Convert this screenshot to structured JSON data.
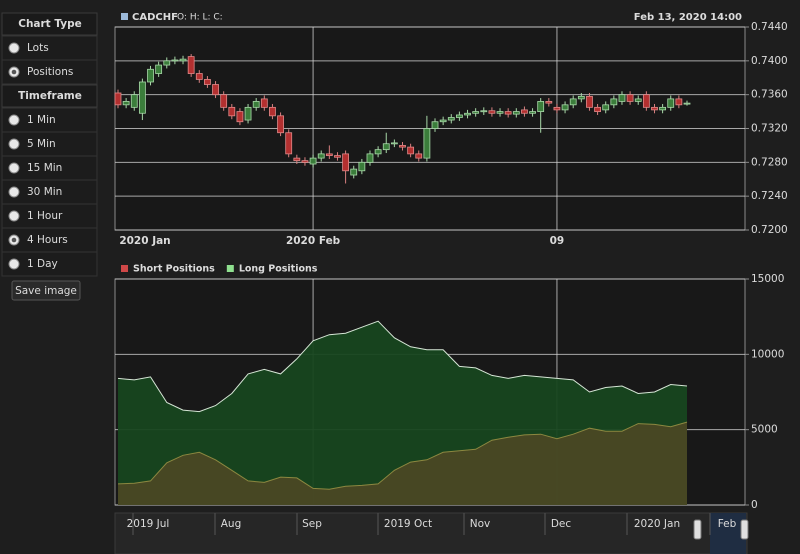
{
  "sidebar": {
    "chart_type": {
      "title": "Chart Type",
      "options": [
        "Lots",
        "Positions"
      ],
      "selected": "Positions"
    },
    "timeframe": {
      "title": "Timeframe",
      "options": [
        "1 Min",
        "5 Min",
        "15 Min",
        "30 Min",
        "1 Hour",
        "4 Hours",
        "1 Day"
      ],
      "selected": "4 Hours"
    },
    "save_button": "Save image"
  },
  "chart_data": [
    {
      "type": "candlestick",
      "title": "CADCHF",
      "ohlc_label": "O: H: L: C:",
      "timestamp": "Feb 13, 2020 14:00",
      "categories": [
        "2020 Jan",
        null,
        null,
        null,
        null,
        null,
        null,
        null,
        null,
        null,
        null,
        null,
        null,
        null,
        null,
        null,
        null,
        null,
        null,
        null,
        null,
        null,
        null,
        null,
        "2020 Feb",
        null,
        null,
        null,
        null,
        null,
        null,
        null,
        null,
        null,
        null,
        null,
        null,
        null,
        null,
        null,
        null,
        null,
        null,
        null,
        null,
        null,
        null,
        null,
        null,
        null,
        null,
        null,
        null,
        null,
        "09",
        null,
        null,
        null,
        null,
        null,
        null,
        null,
        null,
        null,
        null,
        null,
        null,
        null,
        null,
        null,
        null
      ],
      "open": [
        0.7362,
        0.7348,
        0.7345,
        0.7338,
        0.7375,
        0.7385,
        0.7395,
        0.74,
        0.74,
        0.7405,
        0.7385,
        0.7378,
        0.7372,
        0.736,
        0.7345,
        0.734,
        0.733,
        0.7345,
        0.7355,
        0.7345,
        0.7335,
        0.7315,
        0.7285,
        0.7282,
        0.7278,
        0.7285,
        0.729,
        0.7288,
        0.729,
        0.7265,
        0.727,
        0.728,
        0.729,
        0.7295,
        0.7302,
        0.73,
        0.7298,
        0.729,
        0.7285,
        0.732,
        0.7328,
        0.733,
        0.7333,
        0.7336,
        0.7338,
        0.734,
        0.7341,
        0.7338,
        0.734,
        0.7337,
        0.7342,
        0.7338,
        0.734,
        0.7352,
        0.7345,
        0.7342,
        0.7348,
        0.7355,
        0.7358,
        0.7345,
        0.7342,
        0.7348,
        0.7352,
        0.736,
        0.7352,
        0.736,
        0.7345,
        0.7342,
        0.7345,
        0.7355,
        0.735
      ],
      "high": [
        0.7366,
        0.7356,
        0.7364,
        0.7379,
        0.7394,
        0.7399,
        0.7404,
        0.7405,
        0.7406,
        0.7408,
        0.7389,
        0.7382,
        0.7376,
        0.7364,
        0.7349,
        0.7344,
        0.7349,
        0.7356,
        0.7359,
        0.7349,
        0.7339,
        0.7319,
        0.7289,
        0.7286,
        0.7289,
        0.7294,
        0.73,
        0.7292,
        0.7294,
        0.7276,
        0.7284,
        0.7294,
        0.7299,
        0.7315,
        0.7307,
        0.7304,
        0.7302,
        0.7294,
        0.7335,
        0.7332,
        0.7334,
        0.7337,
        0.734,
        0.7342,
        0.7344,
        0.7345,
        0.7345,
        0.7344,
        0.7344,
        0.7344,
        0.7346,
        0.7344,
        0.7356,
        0.7356,
        0.7349,
        0.7352,
        0.7359,
        0.7362,
        0.7362,
        0.7349,
        0.7352,
        0.7359,
        0.7364,
        0.7364,
        0.7359,
        0.7364,
        0.7349,
        0.7349,
        0.7359,
        0.7359,
        0.7353
      ],
      "low": [
        0.7344,
        0.7344,
        0.7341,
        0.733,
        0.7371,
        0.7381,
        0.7391,
        0.7396,
        0.7396,
        0.7381,
        0.7374,
        0.7368,
        0.7356,
        0.7341,
        0.7331,
        0.7324,
        0.7326,
        0.7341,
        0.7341,
        0.7331,
        0.7311,
        0.7286,
        0.7278,
        0.7276,
        0.7274,
        0.7281,
        0.7284,
        0.7282,
        0.7255,
        0.7261,
        0.7266,
        0.7276,
        0.7286,
        0.7291,
        0.7298,
        0.7294,
        0.7286,
        0.7281,
        0.7281,
        0.7316,
        0.7324,
        0.7326,
        0.7329,
        0.7332,
        0.7334,
        0.7336,
        0.7334,
        0.7334,
        0.7333,
        0.7333,
        0.7334,
        0.7334,
        0.7315,
        0.7346,
        0.7338,
        0.7338,
        0.7344,
        0.7351,
        0.7341,
        0.7336,
        0.7338,
        0.7344,
        0.7348,
        0.7348,
        0.7348,
        0.7341,
        0.7338,
        0.7338,
        0.7341,
        0.7344,
        0.7347
      ],
      "close": [
        0.7348,
        0.7352,
        0.736,
        0.7375,
        0.739,
        0.7395,
        0.74,
        0.7401,
        0.7402,
        0.7385,
        0.7378,
        0.7372,
        0.736,
        0.7345,
        0.7335,
        0.7328,
        0.7345,
        0.7352,
        0.7345,
        0.7335,
        0.7315,
        0.729,
        0.7282,
        0.728,
        0.7285,
        0.729,
        0.7288,
        0.7286,
        0.727,
        0.7272,
        0.728,
        0.729,
        0.7295,
        0.7302,
        0.7303,
        0.7298,
        0.729,
        0.7285,
        0.732,
        0.7328,
        0.733,
        0.7333,
        0.7336,
        0.7338,
        0.734,
        0.7341,
        0.7338,
        0.734,
        0.7337,
        0.734,
        0.7338,
        0.734,
        0.7352,
        0.735,
        0.7342,
        0.7348,
        0.7355,
        0.7358,
        0.7345,
        0.734,
        0.7348,
        0.7355,
        0.736,
        0.7352,
        0.7355,
        0.7345,
        0.7342,
        0.7345,
        0.7355,
        0.7348,
        0.735
      ],
      "ylim": [
        0.72,
        0.744
      ],
      "yticks": [
        {
          "value": 0.72,
          "label": "0.7200"
        },
        {
          "value": 0.724,
          "label": "0.7240"
        },
        {
          "value": 0.728,
          "label": "0.7280"
        },
        {
          "value": 0.732,
          "label": "0.7320"
        },
        {
          "value": 0.736,
          "label": "0.7360"
        },
        {
          "value": 0.74,
          "label": "0.7400"
        },
        {
          "value": 0.744,
          "label": "0.7440"
        }
      ],
      "up_color": "#3b7d3b",
      "down_color": "#b33030",
      "grid": true
    },
    {
      "type": "area",
      "categories": [
        null,
        null,
        null,
        null,
        null,
        null,
        null,
        null,
        null,
        null,
        null,
        null,
        null,
        null,
        null,
        null,
        null,
        null,
        null,
        null,
        null,
        null,
        null,
        null,
        null,
        null,
        null,
        null,
        null,
        null,
        null,
        null,
        null,
        null,
        null,
        null
      ],
      "series": [
        {
          "name": "Short Positions",
          "color": "#d04848",
          "fill": "#4a4824",
          "line": "#8c8840",
          "values": [
            1400,
            1450,
            1600,
            2800,
            3300,
            3500,
            3000,
            2300,
            1600,
            1500,
            1850,
            1800,
            1100,
            1050,
            1250,
            1300,
            1400,
            2300,
            2850,
            3000,
            3500,
            3600,
            3700,
            4300,
            4500,
            4650,
            4700,
            4400,
            4700,
            5100,
            4900,
            4900,
            5400,
            5350,
            5200,
            5500
          ]
        },
        {
          "name": "Long Positions",
          "color": "#8fe08f",
          "fill": "#17461f",
          "line": "#d6e6d6",
          "values": [
            8400,
            8300,
            8500,
            6800,
            6300,
            6200,
            6600,
            7400,
            8700,
            9000,
            8700,
            9700,
            10900,
            11300,
            11400,
            11800,
            12200,
            11100,
            10500,
            10300,
            10300,
            9200,
            9100,
            8600,
            8400,
            8600,
            8500,
            8400,
            8300,
            7500,
            7800,
            7900,
            7400,
            7500,
            8000,
            7900
          ]
        }
      ],
      "ylim": [
        0,
        15000
      ],
      "yticks": [
        0,
        5000,
        10000,
        15000
      ],
      "grid": true
    }
  ],
  "navigator": {
    "labels": [
      "2019 Jul",
      "Aug",
      "Sep",
      "2019 Oct",
      "Nov",
      "Dec",
      "2020 Jan",
      "Feb"
    ]
  }
}
